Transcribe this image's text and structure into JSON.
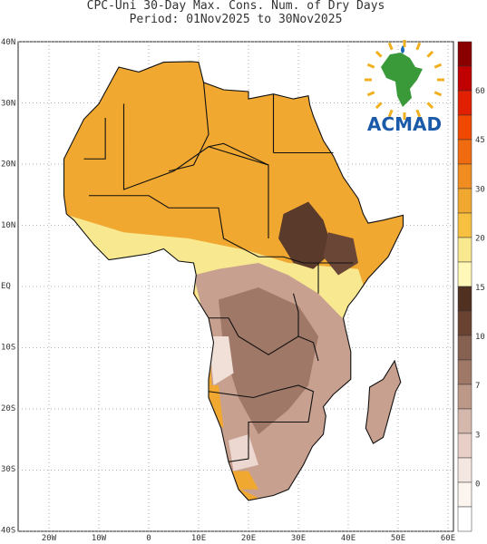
{
  "header": {
    "title": "CPC-Uni 30-Day Max. Cons. Num. of Dry Days",
    "period": "Period: 01Nov2025 to 30Nov2025"
  },
  "map": {
    "x_axis_labels": [
      "20W",
      "10W",
      "0",
      "10E",
      "20E",
      "30E",
      "40E",
      "50E",
      "60E"
    ],
    "y_axis_labels": [
      "40N",
      "30N",
      "20N",
      "10N",
      "EQ",
      "10S",
      "20S",
      "30S",
      "40S"
    ]
  },
  "colorbar": {
    "labels": [
      60,
      45,
      30,
      20,
      15,
      10,
      7,
      3,
      0
    ]
  },
  "logo": {
    "text": "ACMAD"
  }
}
